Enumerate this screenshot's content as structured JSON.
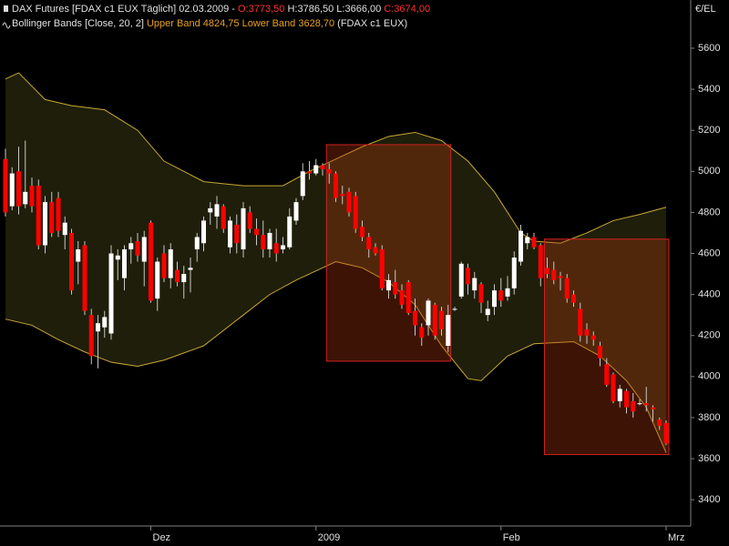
{
  "chart_data": {
    "type": "candlestick",
    "header": {
      "symbol": "DAX Futures [FDAX c1 EUX  Täglich] 02.03.2009 -",
      "open": "O:3773,50",
      "high": "H:3786,50",
      "low": "L:3666,00",
      "close": "C:3674,00",
      "indicator": "Bollinger Bands [Close, 20, 2]",
      "upper": "Upper Band 4824,75",
      "lower": "Lower Band 3628,70",
      "instrument": "(FDAX c1 EUX)"
    },
    "unit": "€/EL",
    "categories": [
      null,
      null,
      null,
      null,
      null,
      null,
      null,
      null,
      null,
      null,
      null,
      null,
      null,
      null,
      null,
      null,
      null,
      null,
      null,
      null,
      null,
      null,
      "Dez",
      null,
      null,
      null,
      null,
      null,
      null,
      null,
      null,
      null,
      null,
      null,
      null,
      null,
      null,
      null,
      null,
      null,
      null,
      null,
      null,
      null,
      null,
      null,
      null,
      "2009",
      null,
      null,
      null,
      null,
      null,
      null,
      null,
      null,
      null,
      null,
      null,
      null,
      null,
      null,
      null,
      null,
      null,
      null,
      null,
      null,
      null,
      null,
      null,
      null,
      null,
      null,
      null,
      "Feb",
      null,
      null,
      null,
      null,
      null,
      null,
      null,
      null,
      null,
      null,
      null,
      null,
      null,
      null,
      null,
      null,
      null,
      null,
      null,
      null,
      null,
      null,
      null,
      null,
      "Mrz"
    ],
    "open": [
      5060,
      4830,
      5000,
      4840,
      4930,
      4930,
      4640,
      4850,
      4870,
      4690,
      4700,
      4560,
      4640,
      4300,
      4220,
      4240,
      4210,
      4570,
      4480,
      4620,
      4660,
      4560,
      4750,
      4380,
      4600,
      4480,
      4520,
      4460,
      4520,
      4620,
      4650,
      4800,
      4780,
      4830,
      4630,
      4740,
      4620,
      4800,
      4720,
      4690,
      4620,
      4650,
      4620,
      4630,
      4760,
      4880,
      5000,
      4990,
      5030,
      5010,
      4990,
      4890,
      4900,
      4880,
      4730,
      4680,
      4630,
      4620,
      4420,
      4460,
      4420,
      4460,
      4320,
      4240,
      4250,
      4350,
      4320,
      4150,
      4330,
      4390,
      4530,
      4420,
      4450,
      4300,
      4340,
      4420,
      4390,
      4430,
      4560,
      4650,
      4680,
      4640,
      4530,
      4520,
      4490,
      4480,
      4400,
      4330,
      4230,
      4200,
      4150,
      4060,
      4010,
      3880,
      3930,
      3880,
      3870,
      3870,
      3850,
      3790,
      3773.5
    ],
    "high": [
      5110,
      5020,
      5120,
      5150,
      4970,
      4960,
      4880,
      4900,
      4900,
      4780,
      4720,
      4660,
      4660,
      4330,
      4300,
      4320,
      4640,
      4620,
      4640,
      4680,
      4700,
      4710,
      4760,
      4580,
      4640,
      4650,
      4560,
      4540,
      4580,
      4700,
      4780,
      4850,
      4880,
      4840,
      4780,
      4790,
      4850,
      4830,
      4770,
      4760,
      4720,
      4720,
      4680,
      4820,
      4870,
      5040,
      5050,
      5060,
      5040,
      5040,
      5000,
      4930,
      4920,
      4900,
      4760,
      4700,
      4650,
      4640,
      4500,
      4520,
      4450,
      4470,
      4380,
      4260,
      4380,
      4360,
      4340,
      4350,
      4340,
      4560,
      4550,
      4510,
      4460,
      4370,
      4450,
      4480,
      4490,
      4610,
      4740,
      4700,
      4700,
      4650,
      4580,
      4560,
      4510,
      4500,
      4420,
      4360,
      4260,
      4220,
      4170,
      4090,
      4020,
      3960,
      3940,
      3920,
      3890,
      3950,
      3860,
      3800,
      3786.5
    ],
    "low": [
      4780,
      4810,
      4790,
      4820,
      4800,
      4620,
      4600,
      4680,
      4680,
      4620,
      4400,
      4450,
      4300,
      4060,
      4040,
      4190,
      4180,
      4470,
      4420,
      4550,
      4560,
      4440,
      4360,
      4320,
      4460,
      4430,
      4440,
      4380,
      4410,
      4560,
      4610,
      4740,
      4720,
      4700,
      4600,
      4600,
      4580,
      4700,
      4640,
      4580,
      4580,
      4560,
      4600,
      4620,
      4740,
      4860,
      4960,
      4980,
      4980,
      4940,
      4850,
      4840,
      4780,
      4700,
      4660,
      4580,
      4590,
      4420,
      4380,
      4380,
      4330,
      4300,
      4200,
      4150,
      4200,
      4180,
      4200,
      4120,
      4320,
      4380,
      4400,
      4380,
      4310,
      4270,
      4300,
      4340,
      4370,
      4400,
      4540,
      4620,
      4620,
      4440,
      4480,
      4450,
      4420,
      4360,
      4340,
      4170,
      4160,
      4150,
      4050,
      3950,
      3870,
      3850,
      3820,
      3800,
      3860,
      3830,
      3780,
      3740,
      3666
    ],
    "close": [
      4800,
      4990,
      4830,
      4900,
      4830,
      4640,
      4850,
      4700,
      4710,
      4750,
      4420,
      4620,
      4320,
      4100,
      4260,
      4290,
      4600,
      4590,
      4620,
      4650,
      4590,
      4680,
      4370,
      4560,
      4480,
      4620,
      4460,
      4500,
      4530,
      4680,
      4760,
      4820,
      4840,
      4720,
      4760,
      4650,
      4820,
      4720,
      4690,
      4620,
      4700,
      4600,
      4640,
      4780,
      4850,
      5000,
      4990,
      5030,
      5010,
      4990,
      4870,
      4880,
      4800,
      4720,
      4680,
      4620,
      4600,
      4430,
      4470,
      4400,
      4350,
      4310,
      4250,
      4190,
      4370,
      4200,
      4230,
      4300,
      4330,
      4550,
      4450,
      4480,
      4360,
      4330,
      4420,
      4370,
      4430,
      4580,
      4710,
      4680,
      4630,
      4480,
      4500,
      4470,
      4480,
      4380,
      4360,
      4200,
      4200,
      4180,
      4090,
      3960,
      3880,
      3940,
      3850,
      3830,
      3870,
      3860,
      3840,
      3760,
      3674
    ],
    "up_color": "#ffffff",
    "down_color": "#ff0000",
    "wick_color": "#c8c8c8",
    "bands": {
      "upper": {
        "x": [
          0,
          2,
          6,
          10,
          15,
          20,
          24,
          30,
          36,
          42,
          46,
          50,
          54,
          58,
          62,
          66,
          70,
          74,
          78,
          80,
          84,
          88,
          92,
          96,
          100
        ],
        "values": [
          5450,
          5480,
          5350,
          5320,
          5300,
          5200,
          5050,
          4950,
          4930,
          4930,
          5000,
          5060,
          5120,
          5170,
          5190,
          5150,
          5050,
          4900,
          4700,
          4660,
          4650,
          4700,
          4760,
          4790,
          4825
        ]
      },
      "lower": {
        "x": [
          0,
          4,
          8,
          12,
          16,
          20,
          24,
          30,
          36,
          40,
          44,
          48,
          50,
          54,
          58,
          62,
          66,
          70,
          72,
          76,
          80,
          86,
          90,
          94,
          97,
          100
        ],
        "values": [
          4280,
          4250,
          4180,
          4120,
          4070,
          4050,
          4080,
          4150,
          4300,
          4400,
          4470,
          4530,
          4560,
          4530,
          4460,
          4350,
          4150,
          3990,
          3980,
          4100,
          4160,
          4170,
          4100,
          3980,
          3850,
          3629
        ]
      },
      "line_color": "#c8a832",
      "fill": "#1e1e0a"
    },
    "highlights": [
      {
        "from": 49,
        "to": 67,
        "high": 5130,
        "low": 4075
      },
      {
        "from": 82,
        "to": 100,
        "high": 4670,
        "low": 3620
      }
    ],
    "ylim": [
      3272,
      5835
    ],
    "yticks": [
      3400,
      3600,
      3800,
      4000,
      4200,
      4400,
      4600,
      4800,
      5000,
      5200,
      5400,
      5600
    ]
  }
}
